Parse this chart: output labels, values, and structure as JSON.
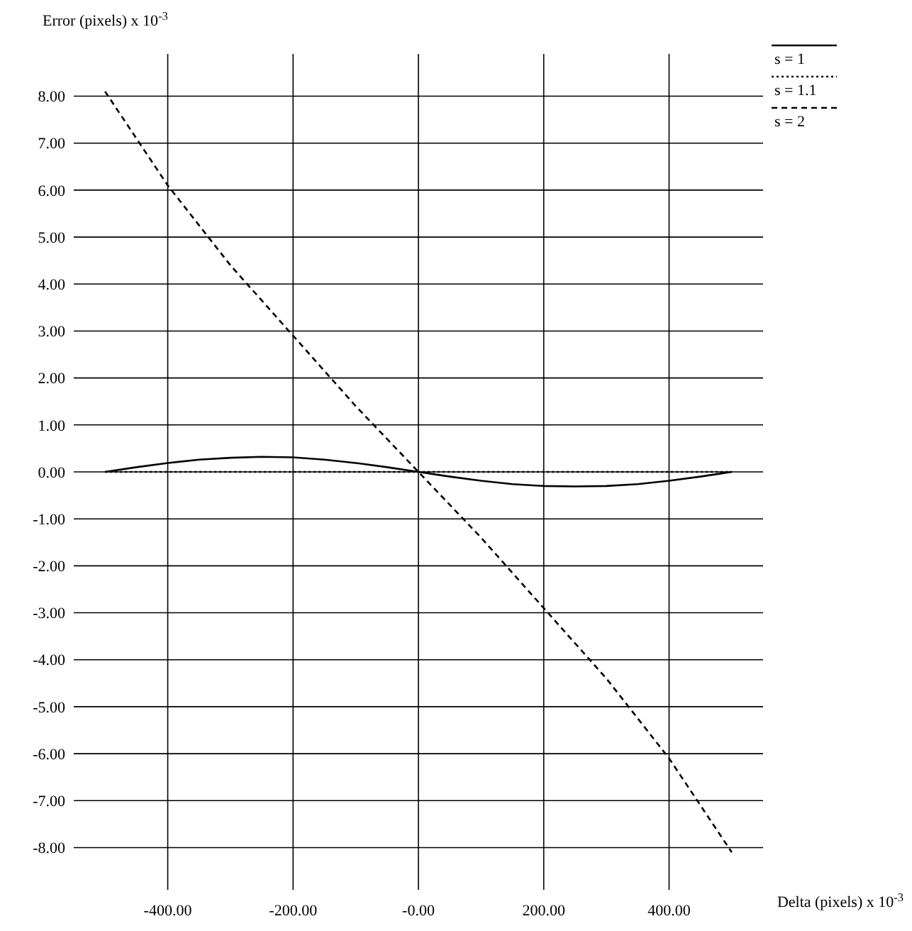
{
  "chart_data": {
    "type": "line",
    "xlabel": "Delta (pixels) x 10$^{-3}$",
    "ylabel": "Error (pixels) x 10$^{-3}$",
    "xlim": [
      -550,
      550
    ],
    "ylim": [
      -8.9,
      8.9
    ],
    "xticks": [
      {
        "value": -400,
        "label": "-400.00"
      },
      {
        "value": -200,
        "label": "-200.00"
      },
      {
        "value": 0,
        "label": "-0.00"
      },
      {
        "value": 200,
        "label": "200.00"
      },
      {
        "value": 400,
        "label": "400.00"
      }
    ],
    "yticks": [
      {
        "value": 8,
        "label": "8.00"
      },
      {
        "value": 7,
        "label": "7.00"
      },
      {
        "value": 6,
        "label": "6.00"
      },
      {
        "value": 5,
        "label": "5.00"
      },
      {
        "value": 4,
        "label": "4.00"
      },
      {
        "value": 3,
        "label": "3.00"
      },
      {
        "value": 2,
        "label": "2.00"
      },
      {
        "value": 1,
        "label": "1.00"
      },
      {
        "value": 0,
        "label": "0.00"
      },
      {
        "value": -1,
        "label": "-1.00"
      },
      {
        "value": -2,
        "label": "-2.00"
      },
      {
        "value": -3,
        "label": "-3.00"
      },
      {
        "value": -4,
        "label": "-4.00"
      },
      {
        "value": -5,
        "label": "-5.00"
      },
      {
        "value": -6,
        "label": "-6.00"
      },
      {
        "value": -7,
        "label": "-7.00"
      },
      {
        "value": -8,
        "label": "-8.00"
      }
    ],
    "grid": true,
    "legend": "top right",
    "series": [
      {
        "name": "s = 1",
        "color": "#000000",
        "line_style": "solid",
        "x": [
          -500,
          -450,
          -400,
          -350,
          -300,
          -250,
          -200,
          -150,
          -100,
          -50,
          0,
          50,
          100,
          150,
          200,
          250,
          300,
          350,
          400,
          450,
          500
        ],
        "values": [
          0,
          0.1,
          0.19,
          0.26,
          0.3,
          0.32,
          0.31,
          0.26,
          0.19,
          0.1,
          0,
          -0.1,
          -0.19,
          -0.26,
          -0.3,
          -0.31,
          -0.3,
          -0.26,
          -0.19,
          -0.1,
          0
        ]
      },
      {
        "name": "s = 1.1",
        "color": "#000000",
        "line_style": "dotted",
        "x": [
          -500,
          0,
          500
        ],
        "values": [
          0,
          0,
          0
        ]
      },
      {
        "name": "s = 2",
        "color": "#000000",
        "line_style": "dashed",
        "x": [
          -500,
          -400,
          -300,
          -200,
          -100,
          0,
          100,
          200,
          300,
          400,
          500
        ],
        "values": [
          8.1,
          6.1,
          4.4,
          2.9,
          1.4,
          0,
          -1.4,
          -2.9,
          -4.4,
          -6.1,
          -8.1
        ]
      }
    ]
  }
}
